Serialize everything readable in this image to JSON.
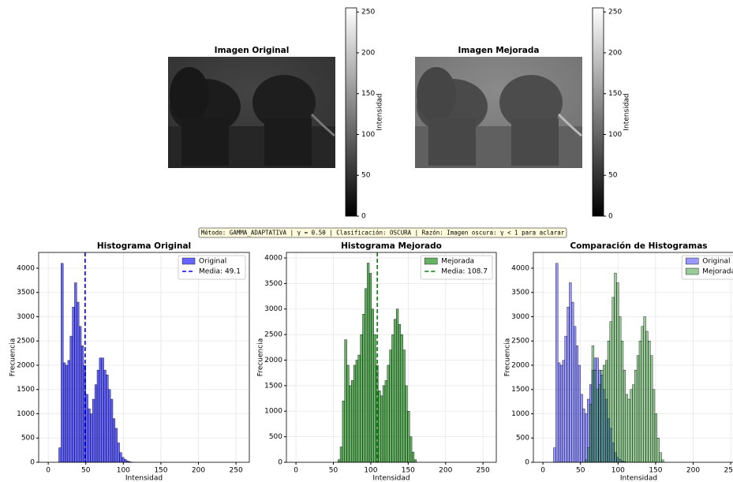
{
  "images": [
    {
      "title": "Imagen Original",
      "colorbar": {
        "label": "Intensidad",
        "lim": [
          0,
          255
        ],
        "ticks": [
          0,
          50,
          100,
          150,
          200,
          250
        ]
      }
    },
    {
      "title": "Imagen Mejorada",
      "colorbar": {
        "label": "Intensidad",
        "lim": [
          0,
          255
        ],
        "ticks": [
          0,
          50,
          100,
          150,
          200,
          250
        ]
      }
    }
  ],
  "annotation": "Método: GAMMA_ADAPTATIVA | γ = 0.50 | Clasificación: OSCURA | Razón: Imagen oscura: γ < 1 para aclarar",
  "chart_data": [
    {
      "type": "histogram",
      "title": "Histograma Original",
      "xlabel": "Intensidad",
      "ylabel": "Frecuencia",
      "xlim": [
        -12.75,
        267.75
      ],
      "ylim": [
        0,
        4325
      ],
      "xticks": [
        0,
        50,
        100,
        150,
        200,
        250
      ],
      "yticks": [
        0,
        500,
        1000,
        1500,
        2000,
        2500,
        3000,
        3500,
        4000
      ],
      "grid": true,
      "legend": "upper right",
      "series": [
        {
          "name": "Original",
          "color": "#0000ff",
          "opacity": 0.6,
          "bins": [
            14,
            17,
            20,
            23,
            26,
            29,
            32,
            35,
            38,
            41,
            44,
            47,
            50,
            53,
            56,
            59,
            62,
            65,
            68,
            71,
            74,
            77,
            80,
            83,
            86,
            89,
            92,
            95,
            98,
            101,
            104,
            107,
            110,
            113
          ],
          "counts": [
            300,
            4100,
            2050,
            2000,
            2100,
            2600,
            3200,
            3700,
            3300,
            2800,
            2400,
            2000,
            1400,
            1100,
            1000,
            1300,
            1600,
            1900,
            2150,
            2150,
            1900,
            1800,
            1500,
            1300,
            900,
            700,
            400,
            200,
            100,
            60,
            30,
            15,
            5
          ]
        }
      ],
      "vlines": [
        {
          "name": "Media: 49.1",
          "value": 49.1,
          "color": "#0000ff"
        }
      ]
    },
    {
      "type": "histogram",
      "title": "Histograma Mejorado",
      "xlabel": "Intensidad",
      "ylabel": "Frecuencia",
      "xlim": [
        -12.75,
        267.75
      ],
      "ylim": [
        0,
        4108
      ],
      "xticks": [
        0,
        50,
        100,
        150,
        200,
        250
      ],
      "yticks": [
        0,
        500,
        1000,
        1500,
        2000,
        2500,
        3000,
        3500,
        4000
      ],
      "grid": true,
      "legend": "upper right",
      "series": [
        {
          "name": "Mejorada",
          "color": "#008000",
          "opacity": 0.6,
          "bins": [
            56,
            59,
            62,
            65,
            68,
            71,
            74,
            77,
            80,
            83,
            86,
            89,
            92,
            95,
            98,
            101,
            104,
            107,
            110,
            113,
            116,
            119,
            122,
            125,
            128,
            131,
            134,
            137,
            140,
            143,
            146,
            149,
            152,
            155,
            158,
            161
          ],
          "counts": [
            50,
            300,
            1200,
            2400,
            1900,
            1500,
            1600,
            1900,
            2000,
            2100,
            2500,
            2900,
            3400,
            3900,
            3700,
            3000,
            2500,
            1900,
            1400,
            1300,
            1500,
            1600,
            1900,
            2200,
            2500,
            2800,
            3000,
            2700,
            2500,
            2200,
            1500,
            1000,
            500,
            200,
            50
          ]
        }
      ],
      "vlines": [
        {
          "name": "Media: 108.7",
          "value": 108.7,
          "color": "#008000"
        }
      ]
    },
    {
      "type": "histogram",
      "title": "Comparación de Histogramas",
      "xlabel": "Intensidad",
      "ylabel": "Frecuencia",
      "xlim": [
        -12.75,
        267.75
      ],
      "ylim": [
        0,
        4325
      ],
      "xticks": [
        0,
        50,
        100,
        150,
        200,
        250
      ],
      "yticks": [
        0,
        500,
        1000,
        1500,
        2000,
        2500,
        3000,
        3500,
        4000
      ],
      "grid": true,
      "legend": "upper right",
      "series": [
        {
          "name": "Original",
          "color": "#0000ff",
          "opacity": 0.4,
          "bins": [
            14,
            17,
            20,
            23,
            26,
            29,
            32,
            35,
            38,
            41,
            44,
            47,
            50,
            53,
            56,
            59,
            62,
            65,
            68,
            71,
            74,
            77,
            80,
            83,
            86,
            89,
            92,
            95,
            98,
            101,
            104,
            107,
            110,
            113
          ],
          "counts": [
            300,
            4100,
            2050,
            2000,
            2100,
            2600,
            3200,
            3700,
            3300,
            2800,
            2400,
            2000,
            1400,
            1100,
            1000,
            1300,
            1600,
            1900,
            2150,
            2150,
            1900,
            1800,
            1500,
            1300,
            900,
            700,
            400,
            200,
            100,
            60,
            30,
            15,
            5
          ]
        },
        {
          "name": "Mejorada",
          "color": "#008000",
          "opacity": 0.4,
          "bins": [
            56,
            59,
            62,
            65,
            68,
            71,
            74,
            77,
            80,
            83,
            86,
            89,
            92,
            95,
            98,
            101,
            104,
            107,
            110,
            113,
            116,
            119,
            122,
            125,
            128,
            131,
            134,
            137,
            140,
            143,
            146,
            149,
            152,
            155,
            158,
            161
          ],
          "counts": [
            50,
            300,
            1200,
            2400,
            1900,
            1500,
            1600,
            1900,
            2000,
            2100,
            2500,
            2900,
            3400,
            3900,
            3700,
            3000,
            2500,
            1900,
            1400,
            1300,
            1500,
            1600,
            1900,
            2200,
            2500,
            2800,
            3000,
            2700,
            2500,
            2200,
            1500,
            1000,
            500,
            200,
            50
          ]
        }
      ],
      "vlines": []
    }
  ]
}
